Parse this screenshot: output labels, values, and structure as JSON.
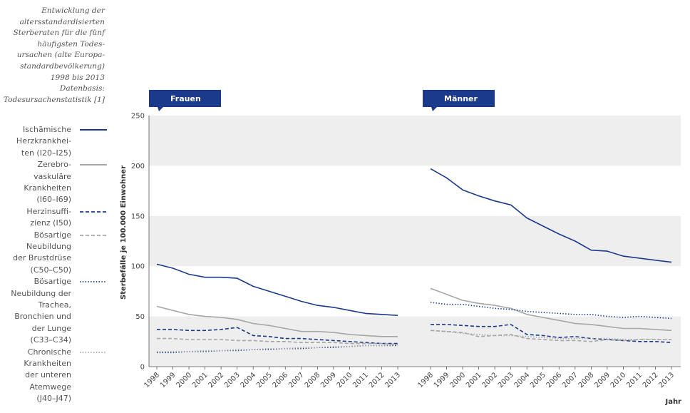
{
  "caption_lines": [
    "Entwicklung der",
    "altersstandardisierten",
    "Sterberaten für die fünf",
    "häufigsten Todes-",
    "ursachen (alte Europa-",
    "standardbevölkerung)",
    "1998 bis 2013",
    "Datenbasis:",
    "Todesursachenstatistik [1]"
  ],
  "colors": {
    "navy": "#1b3a8c",
    "gray": "#a6a6a6",
    "band": "#eeeeee"
  },
  "chart_data": {
    "type": "line",
    "ylabel": "Sterbefälle je 100.000 Einwohner",
    "xlabel": "Jahr",
    "ylim": [
      0,
      250
    ],
    "yticks": [
      0,
      50,
      100,
      150,
      200,
      250
    ],
    "grid": "alternating horizontal bands",
    "x": [
      "1998",
      "1999",
      "2000",
      "2001",
      "2002",
      "2003",
      "2004",
      "2005",
      "2006",
      "2007",
      "2008",
      "2009",
      "2010",
      "2011",
      "2012",
      "2013"
    ],
    "panels": [
      {
        "name": "Frauen",
        "series": [
          {
            "name": "Ischämische Herzkrankheiten (I20 – I25)",
            "style": "solid",
            "color": "#1b3a8c",
            "values": [
              102,
              98,
              92,
              89,
              89,
              88,
              80,
              75,
              70,
              65,
              61,
              59,
              56,
              53,
              52,
              51
            ]
          },
          {
            "name": "Zerebrovaskuläre Krankheiten (I60 – I69)",
            "style": "solid",
            "color": "#a6a6a6",
            "values": [
              60,
              56,
              52,
              50,
              49,
              47,
              43,
              41,
              38,
              35,
              35,
              34,
              32,
              31,
              30,
              30
            ]
          },
          {
            "name": "Herzinsuffizienz (I50)",
            "style": "dashed",
            "color": "#1b3a8c",
            "values": [
              37,
              37,
              36,
              36,
              37,
              39,
              31,
              30,
              28,
              28,
              27,
              26,
              25,
              24,
              23,
              23
            ]
          },
          {
            "name": "Bösartige Neubildung der Brustdrüse (C50 – C50)",
            "style": "dashed",
            "color": "#a6a6a6",
            "values": [
              28,
              28,
              27,
              27,
              27,
              26,
              26,
              25,
              25,
              24,
              24,
              24,
              23,
              23,
              23,
              22
            ]
          },
          {
            "name": "Bösartige Neubildung der Trachea, Bronchien und der Lunge (C33 – C34)",
            "style": "dotted",
            "color": "#1b3a8c",
            "values": [
              14,
              14,
              15,
              15,
              16,
              16,
              17,
              17,
              18,
              18,
              19,
              19,
              20,
              21,
              21,
              21
            ]
          },
          {
            "name": "Chronische Krankheiten der unteren Atemwege (J40 – J47)",
            "style": "dotted",
            "color": "#a6a6a6",
            "values": [
              15,
              15,
              15,
              16,
              16,
              17,
              17,
              18,
              18,
              19,
              19,
              20,
              20,
              21,
              21,
              22
            ]
          }
        ]
      },
      {
        "name": "Männer",
        "series": [
          {
            "name": "Ischämische Herzkrankheiten (I20 – I25)",
            "style": "solid",
            "color": "#1b3a8c",
            "values": [
              197,
              188,
              176,
              170,
              165,
              161,
              148,
              140,
              132,
              125,
              116,
              115,
              110,
              108,
              106,
              104
            ]
          },
          {
            "name": "Zerebrovaskuläre Krankheiten (I60 – I69)",
            "style": "solid",
            "color": "#a6a6a6",
            "values": [
              78,
              72,
              66,
              63,
              61,
              58,
              52,
              49,
              46,
              43,
              42,
              40,
              38,
              38,
              37,
              36
            ]
          },
          {
            "name": "Herzinsuffizienz (I50)",
            "style": "dashed",
            "color": "#1b3a8c",
            "values": [
              42,
              42,
              41,
              40,
              40,
              42,
              32,
              31,
              29,
              30,
              28,
              27,
              26,
              25,
              25,
              24
            ]
          },
          {
            "name": "Bösartige Neubildung der Brustdrüse (C50 – C50)",
            "style": "dashed",
            "color": "#a6a6a6",
            "values": [
              36,
              35,
              34,
              30,
              31,
              32,
              28,
              27,
              26,
              26,
              25,
              27,
              26,
              27,
              27,
              27
            ]
          },
          {
            "name": "Bösartige Neubildung der Trachea, Bronchien und der Lunge (C33 – C34)",
            "style": "dotted",
            "color": "#1b3a8c",
            "values": [
              64,
              62,
              62,
              60,
              58,
              57,
              55,
              54,
              53,
              52,
              52,
              50,
              49,
              50,
              49,
              48
            ]
          },
          {
            "name": "Chronische Krankheiten der unteren Atemwege (J40 – J47)",
            "style": "dotted",
            "color": "#a6a6a6",
            "values": [
              36,
              35,
              33,
              32,
              31,
              31,
              30,
              29,
              28,
              28,
              28,
              28,
              27,
              27,
              27,
              27
            ]
          }
        ]
      }
    ]
  },
  "legend": [
    {
      "lines": [
        "Ischämische",
        "Herzkrankhei-",
        "ten (I20–I25)"
      ],
      "style": "solid",
      "color": "#1b3a8c"
    },
    {
      "lines": [
        "Zerebro-",
        "vaskuläre",
        "Krankheiten",
        "(I60–I69)"
      ],
      "style": "solid",
      "color": "#a6a6a6"
    },
    {
      "lines": [
        "Herzinsuffi-",
        "zienz (I50)"
      ],
      "style": "dashed",
      "color": "#1b3a8c"
    },
    {
      "lines": [
        "Bösartige",
        "Neubildung",
        "der Brustdrüse",
        "(C50–C50)"
      ],
      "style": "dashed",
      "color": "#a6a6a6"
    },
    {
      "lines": [
        "Bösartige",
        "Neubildung der",
        "Trachea,",
        "Bronchien und",
        "der Lunge",
        "(C33–C34)"
      ],
      "style": "dotted",
      "color": "#1b3a8c"
    },
    {
      "lines": [
        "Chronische",
        "Krankheiten",
        "der unteren",
        "Atemwege",
        "(J40–J47)"
      ],
      "style": "dotted",
      "color": "#a6a6a6"
    }
  ]
}
